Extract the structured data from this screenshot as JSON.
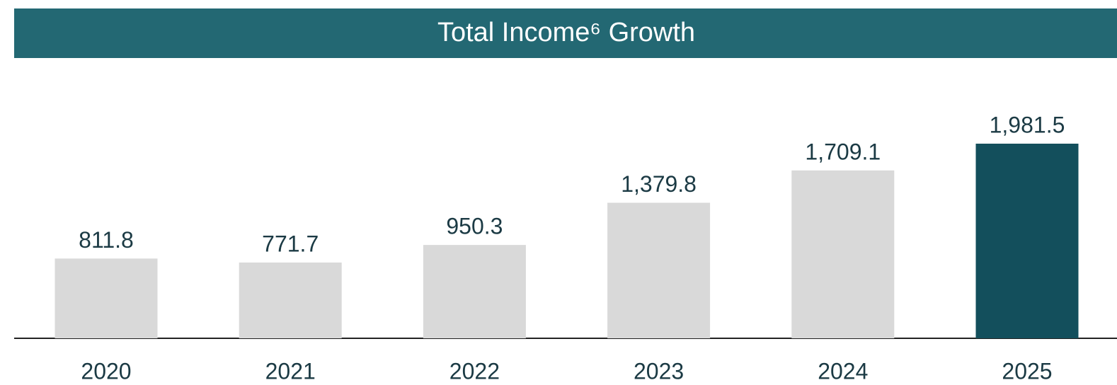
{
  "chart_data": {
    "type": "bar",
    "title": "Total Income⁶ Growth",
    "categories": [
      "2020",
      "2021",
      "2022",
      "2023",
      "2024",
      "2025"
    ],
    "values": [
      811.8,
      771.7,
      950.3,
      1379.8,
      1709.1,
      1981.5
    ],
    "value_labels": [
      "811.8",
      "771.7",
      "950.3",
      "1,379.8",
      "1,709.1",
      "1,981.5"
    ],
    "colors": [
      "#d9d9d9",
      "#d9d9d9",
      "#d9d9d9",
      "#d9d9d9",
      "#d9d9d9",
      "#134f5c"
    ]
  }
}
